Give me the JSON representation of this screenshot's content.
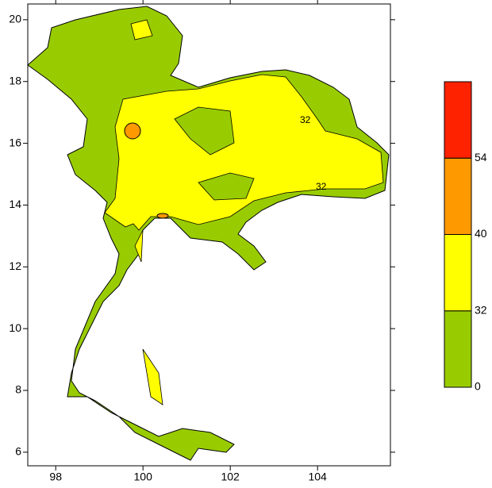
{
  "map": {
    "xlim": [
      97.36,
      105.67
    ],
    "xticks": [
      98,
      100,
      102,
      104
    ],
    "ylim": [
      5.56,
      20.51
    ],
    "yticks": [
      6,
      8,
      10,
      12,
      14,
      16,
      18,
      20
    ],
    "legend": {
      "levels": [
        0,
        32,
        40,
        54
      ],
      "colors": [
        "#99cc00",
        "#ffff00",
        "#ff9900",
        "#ff2200"
      ]
    },
    "contour_labels": [
      "32",
      "32"
    ]
  }
}
